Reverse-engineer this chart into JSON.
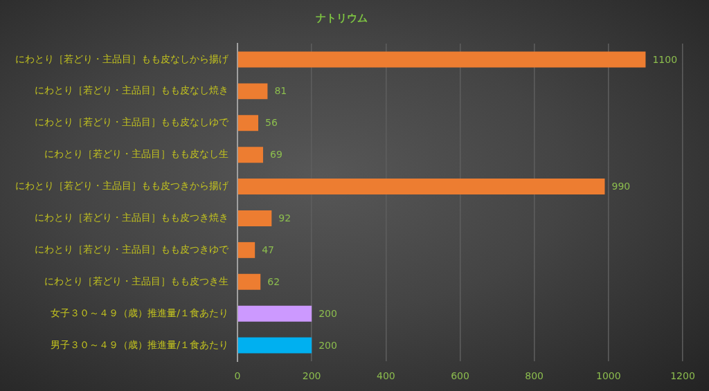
{
  "chart_data": {
    "type": "bar",
    "orientation": "horizontal",
    "title": "ナトリウム",
    "categories": [
      "にわとり［若どり・主品目］もも皮なしから揚げ",
      "にわとり［若どり・主品目］もも皮なし焼き",
      "にわとり［若どり・主品目］もも皮なしゆで",
      "にわとり［若どり・主品目］もも皮なし生",
      "にわとり［若どり・主品目］もも皮つきから揚げ",
      "にわとり［若どり・主品目］もも皮つき焼き",
      "にわとり［若どり・主品目］もも皮つきゆで",
      "にわとり［若どり・主品目］もも皮つき生",
      "女子３０～４９（歳）推進量/１食あたり",
      "男子３０～４９（歳）推進量/１食あたり"
    ],
    "values": [
      1100,
      81,
      56,
      69,
      990,
      92,
      47,
      62,
      200,
      200
    ],
    "colors": [
      "#ed7d31",
      "#ed7d31",
      "#ed7d31",
      "#ed7d31",
      "#ed7d31",
      "#ed7d31",
      "#ed7d31",
      "#ed7d31",
      "#cc99ff",
      "#00b0f0"
    ],
    "xlim": [
      0,
      1200
    ],
    "xticks": [
      0,
      200,
      400,
      600,
      800,
      1000,
      1200
    ],
    "grid": "x",
    "data_labels": true
  }
}
